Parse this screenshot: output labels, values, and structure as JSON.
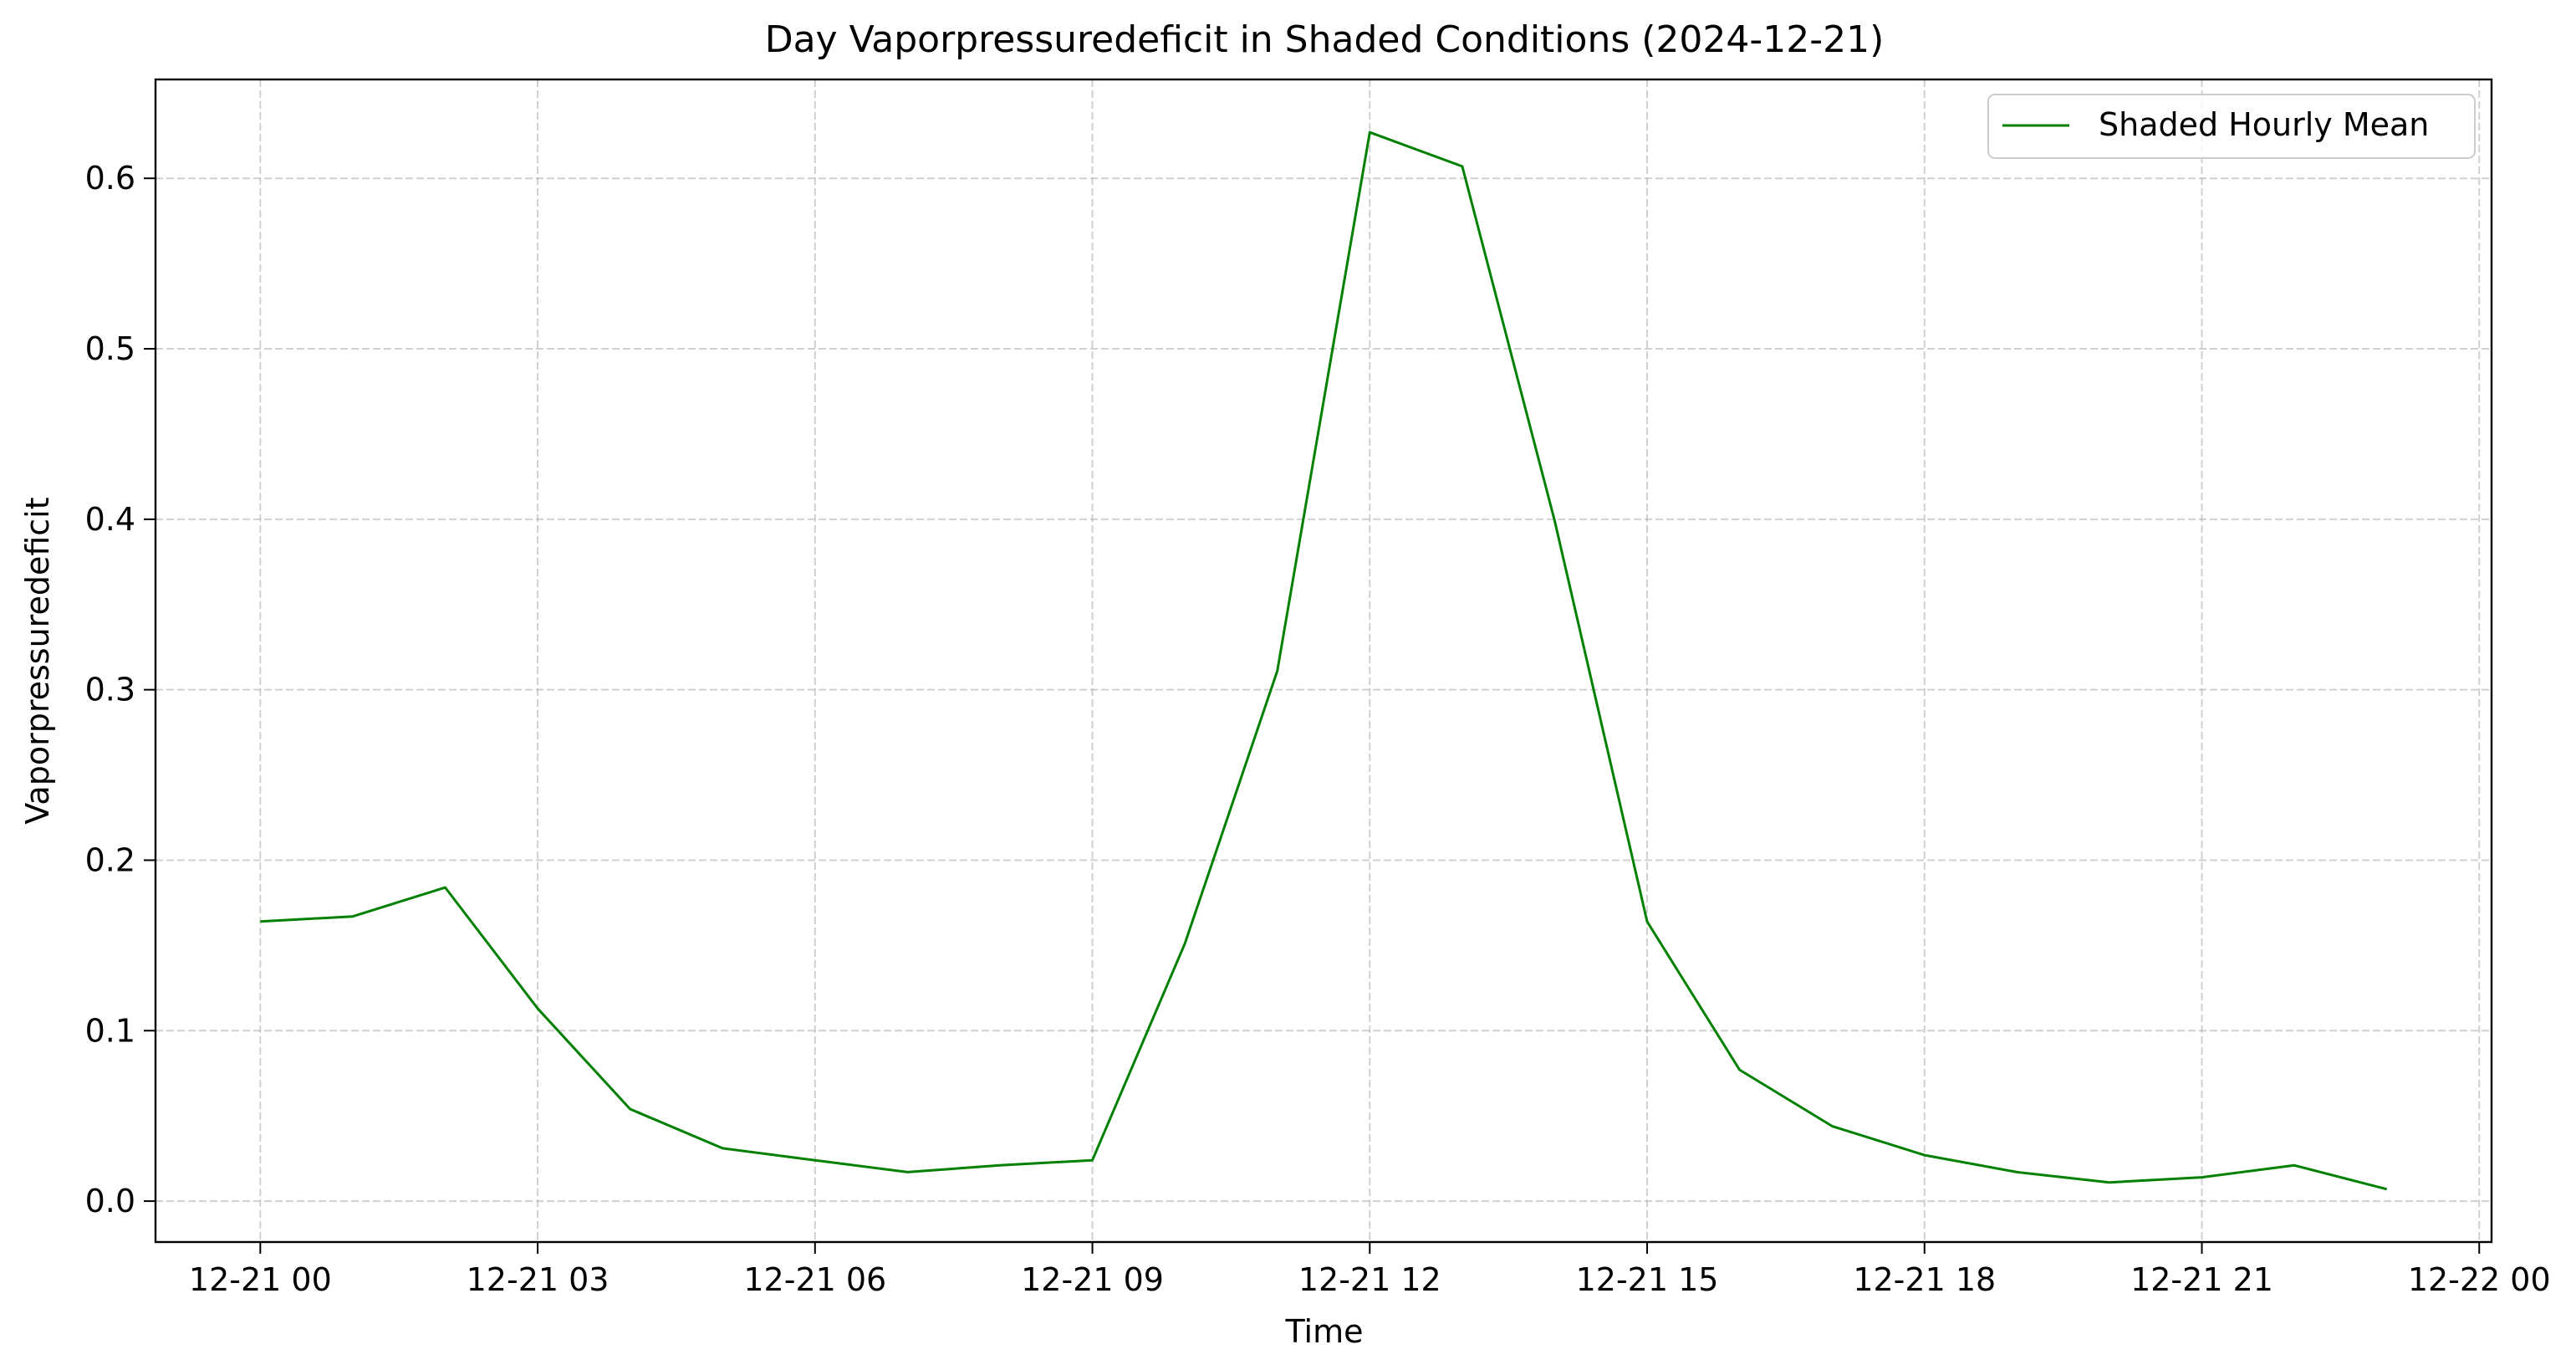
{
  "chart_data": {
    "type": "line",
    "title": "Day Vaporpressuredeficit in Shaded Conditions (2024-12-21)",
    "xlabel": "Time",
    "ylabel": "Vaporpressuredeficit",
    "x_ticks": [
      "2024-12-21 00:00",
      "2024-12-21 03:00",
      "2024-12-21 06:00",
      "2024-12-21 09:00",
      "2024-12-21 12:00",
      "2024-12-21 15:00",
      "2024-12-21 18:00",
      "2024-12-21 21:00",
      "2024-12-22 00:00"
    ],
    "x_tick_labels": [
      "12-21 00",
      "12-21 03",
      "12-21 06",
      "12-21 09",
      "12-21 12",
      "12-21 15",
      "12-21 18",
      "12-21 21",
      "12-22 00"
    ],
    "y_ticks": [
      0.0,
      0.1,
      0.2,
      0.3,
      0.4,
      0.5,
      0.6
    ],
    "y_tick_labels": [
      "0.0",
      "0.1",
      "0.2",
      "0.3",
      "0.4",
      "0.5",
      "0.6"
    ],
    "xlim": [
      "2024-12-20 22:52",
      "2024-12-22 00:08"
    ],
    "ylim": [
      -0.024,
      0.658
    ],
    "grid": true,
    "legend_position": "top-right",
    "series": [
      {
        "name": "Shaded Hourly Mean",
        "color": "#008000",
        "x": [
          "2024-12-21 00:00",
          "2024-12-21 01:00",
          "2024-12-21 02:00",
          "2024-12-21 03:00",
          "2024-12-21 04:00",
          "2024-12-21 05:00",
          "2024-12-21 06:00",
          "2024-12-21 07:00",
          "2024-12-21 08:00",
          "2024-12-21 09:00",
          "2024-12-21 10:00",
          "2024-12-21 11:00",
          "2024-12-21 12:00",
          "2024-12-21 13:00",
          "2024-12-21 14:00",
          "2024-12-21 15:00",
          "2024-12-21 16:00",
          "2024-12-21 17:00",
          "2024-12-21 18:00",
          "2024-12-21 19:00",
          "2024-12-21 20:00",
          "2024-12-21 21:00",
          "2024-12-21 22:00",
          "2024-12-21 23:00"
        ],
        "values": [
          0.164,
          0.167,
          0.184,
          0.113,
          0.054,
          0.031,
          0.024,
          0.017,
          0.021,
          0.024,
          0.151,
          0.311,
          0.627,
          0.607,
          0.399,
          0.164,
          0.077,
          0.044,
          0.027,
          0.017,
          0.011,
          0.014,
          0.021,
          0.007
        ]
      }
    ]
  }
}
